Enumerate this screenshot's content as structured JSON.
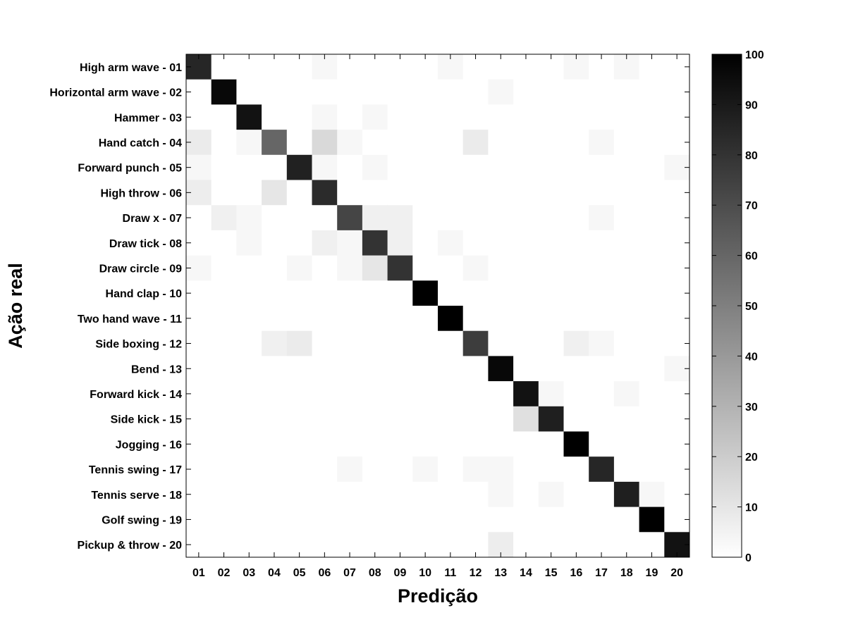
{
  "chart_data": {
    "type": "heatmap",
    "title": "",
    "xlabel": "Predição",
    "ylabel": "Ação real",
    "x_categories": [
      "01",
      "02",
      "03",
      "04",
      "05",
      "06",
      "07",
      "08",
      "09",
      "10",
      "11",
      "12",
      "13",
      "14",
      "15",
      "16",
      "17",
      "18",
      "19",
      "20"
    ],
    "y_categories": [
      "High arm wave - 01",
      "Horizontal arm wave - 02",
      "Hammer - 03",
      "Hand catch - 04",
      "Forward punch - 05",
      "High throw - 06",
      "Draw x - 07",
      "Draw tick - 08",
      "Draw circle - 09",
      "Hand clap - 10",
      "Two hand wave - 11",
      "Side boxing - 12",
      "Bend - 13",
      "Forward kick - 14",
      "Side kick - 15",
      "Jogging - 16",
      "Tennis swing - 17",
      "Tennis serve - 18",
      "Golf swing - 19",
      "Pickup & throw - 20"
    ],
    "values": [
      [
        85,
        0,
        0,
        0,
        0,
        3,
        0,
        0,
        0,
        0,
        3,
        0,
        0,
        0,
        0,
        3,
        0,
        3,
        0,
        0
      ],
      [
        0,
        97,
        0,
        0,
        0,
        0,
        0,
        0,
        0,
        0,
        0,
        0,
        3,
        0,
        0,
        0,
        0,
        0,
        0,
        0
      ],
      [
        0,
        0,
        93,
        0,
        0,
        3,
        0,
        3,
        0,
        0,
        0,
        0,
        0,
        0,
        0,
        0,
        0,
        0,
        0,
        0
      ],
      [
        8,
        0,
        3,
        60,
        0,
        15,
        3,
        0,
        0,
        0,
        0,
        8,
        0,
        0,
        0,
        0,
        3,
        0,
        0,
        0
      ],
      [
        3,
        0,
        0,
        0,
        87,
        3,
        0,
        3,
        0,
        0,
        0,
        0,
        0,
        0,
        0,
        0,
        0,
        0,
        0,
        3
      ],
      [
        7,
        0,
        0,
        10,
        0,
        83,
        0,
        0,
        0,
        0,
        0,
        0,
        0,
        0,
        0,
        0,
        0,
        0,
        0,
        0
      ],
      [
        0,
        6,
        3,
        0,
        0,
        0,
        73,
        6,
        6,
        0,
        0,
        0,
        0,
        0,
        0,
        0,
        3,
        0,
        0,
        0
      ],
      [
        0,
        0,
        3,
        0,
        0,
        6,
        3,
        80,
        6,
        0,
        3,
        0,
        0,
        0,
        0,
        0,
        0,
        0,
        0,
        0
      ],
      [
        3,
        0,
        0,
        0,
        3,
        0,
        3,
        10,
        80,
        0,
        0,
        3,
        0,
        0,
        0,
        0,
        0,
        0,
        0,
        0
      ],
      [
        0,
        0,
        0,
        0,
        0,
        0,
        0,
        0,
        0,
        100,
        0,
        0,
        0,
        0,
        0,
        0,
        0,
        0,
        0,
        0
      ],
      [
        0,
        0,
        0,
        0,
        0,
        0,
        0,
        0,
        0,
        0,
        100,
        0,
        0,
        0,
        0,
        0,
        0,
        0,
        0,
        0
      ],
      [
        0,
        0,
        0,
        6,
        8,
        0,
        0,
        0,
        0,
        0,
        0,
        76,
        0,
        0,
        0,
        6,
        3,
        0,
        0,
        0
      ],
      [
        0,
        0,
        0,
        0,
        0,
        0,
        0,
        0,
        0,
        0,
        0,
        0,
        97,
        0,
        0,
        0,
        0,
        0,
        0,
        3
      ],
      [
        0,
        0,
        0,
        0,
        0,
        0,
        0,
        0,
        0,
        0,
        0,
        0,
        0,
        93,
        3,
        0,
        0,
        3,
        0,
        0
      ],
      [
        0,
        0,
        0,
        0,
        0,
        0,
        0,
        0,
        0,
        0,
        0,
        0,
        0,
        12,
        88,
        0,
        0,
        0,
        0,
        0
      ],
      [
        0,
        0,
        0,
        0,
        0,
        0,
        0,
        0,
        0,
        0,
        0,
        0,
        0,
        0,
        0,
        100,
        0,
        0,
        0,
        0
      ],
      [
        0,
        0,
        0,
        0,
        0,
        0,
        3,
        0,
        0,
        3,
        0,
        3,
        3,
        0,
        0,
        0,
        85,
        0,
        0,
        0
      ],
      [
        0,
        0,
        0,
        0,
        0,
        0,
        0,
        0,
        0,
        0,
        0,
        0,
        3,
        0,
        3,
        0,
        0,
        88,
        3,
        0
      ],
      [
        0,
        0,
        0,
        0,
        0,
        0,
        0,
        0,
        0,
        0,
        0,
        0,
        0,
        0,
        0,
        0,
        0,
        0,
        100,
        0
      ],
      [
        0,
        0,
        0,
        0,
        0,
        0,
        0,
        0,
        0,
        0,
        0,
        0,
        7,
        0,
        0,
        0,
        0,
        0,
        0,
        93
      ]
    ],
    "colorbar": {
      "range": [
        0,
        100
      ],
      "ticks": [
        "0",
        "10",
        "20",
        "30",
        "40",
        "50",
        "60",
        "70",
        "80",
        "90",
        "100"
      ],
      "colormap": "gray (white = 0, black = 100)"
    }
  }
}
